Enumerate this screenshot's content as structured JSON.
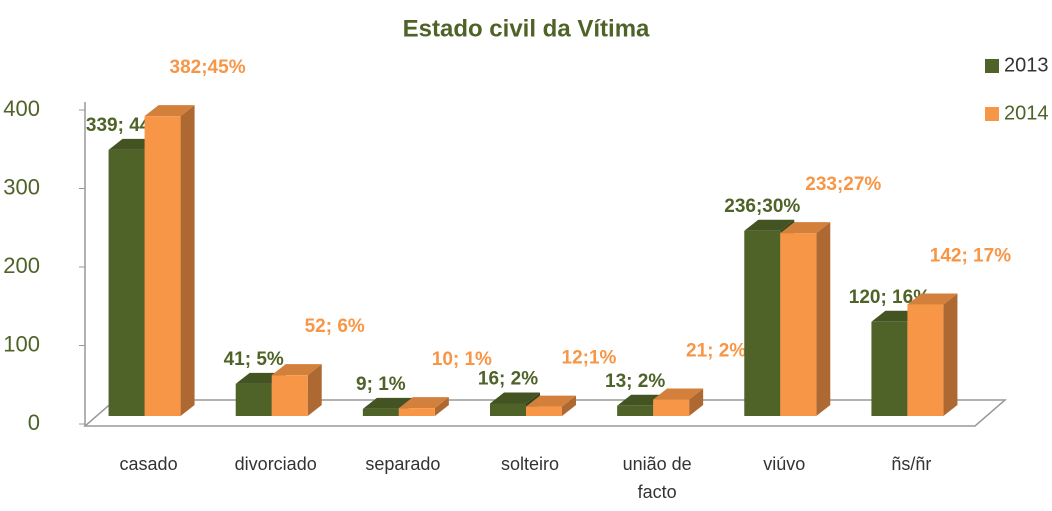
{
  "chart_data": {
    "type": "bar3d",
    "title": "Estado civil da Vítima",
    "categories": [
      "casado",
      "divorciado",
      "separado",
      "solteiro",
      "união de facto",
      "viúvo",
      "ñs/ñr"
    ],
    "series": [
      {
        "name": "2013",
        "color": "#4f6228",
        "values": [
          339,
          41,
          9,
          16,
          13,
          236,
          120
        ],
        "value_labels": [
          "339; 44%",
          "41; 5%",
          "9; 1%",
          "16; 2%",
          "13; 2%",
          "236;30%",
          "120; 16%"
        ]
      },
      {
        "name": "2014",
        "color": "#f79646",
        "values": [
          382,
          52,
          10,
          12,
          21,
          233,
          142
        ],
        "value_labels": [
          "382;45%",
          "52; 6%",
          "10; 1%",
          "12;1%",
          "21; 2%",
          "233;27%",
          "142; 17%"
        ]
      }
    ],
    "ylim": [
      0,
      400
    ],
    "yticks": [
      0,
      100,
      200,
      300,
      400
    ],
    "legend": "top-right"
  }
}
